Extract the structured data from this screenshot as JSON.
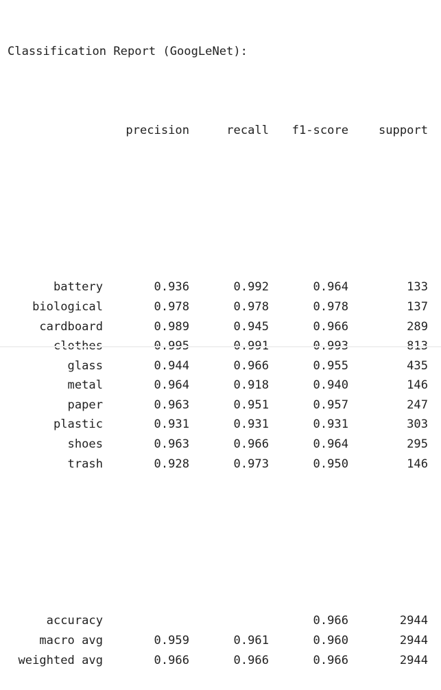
{
  "title": "Classification Report (GoogLeNet):",
  "columns": [
    "precision",
    "recall",
    "f1-score",
    "support"
  ],
  "rows": [
    {
      "label": "battery",
      "precision": "0.936",
      "recall": "0.992",
      "f1": "0.964",
      "support": "133"
    },
    {
      "label": "biological",
      "precision": "0.978",
      "recall": "0.978",
      "f1": "0.978",
      "support": "137"
    },
    {
      "label": "cardboard",
      "precision": "0.989",
      "recall": "0.945",
      "f1": "0.966",
      "support": "289"
    },
    {
      "label": "clothes",
      "precision": "0.995",
      "recall": "0.991",
      "f1": "0.993",
      "support": "813"
    },
    {
      "label": "glass",
      "precision": "0.944",
      "recall": "0.966",
      "f1": "0.955",
      "support": "435"
    },
    {
      "label": "metal",
      "precision": "0.964",
      "recall": "0.918",
      "f1": "0.940",
      "support": "146"
    },
    {
      "label": "paper",
      "precision": "0.963",
      "recall": "0.951",
      "f1": "0.957",
      "support": "247"
    },
    {
      "label": "plastic",
      "precision": "0.931",
      "recall": "0.931",
      "f1": "0.931",
      "support": "303"
    },
    {
      "label": "shoes",
      "precision": "0.963",
      "recall": "0.966",
      "f1": "0.964",
      "support": "295"
    },
    {
      "label": "trash",
      "precision": "0.928",
      "recall": "0.973",
      "f1": "0.950",
      "support": "146"
    }
  ],
  "summary": [
    {
      "label": "accuracy",
      "precision": "",
      "recall": "",
      "f1": "0.966",
      "support": "2944"
    },
    {
      "label": "macro avg",
      "precision": "0.959",
      "recall": "0.961",
      "f1": "0.960",
      "support": "2944"
    },
    {
      "label": "weighted avg",
      "precision": "0.966",
      "recall": "0.966",
      "f1": "0.966",
      "support": "2944"
    }
  ]
}
